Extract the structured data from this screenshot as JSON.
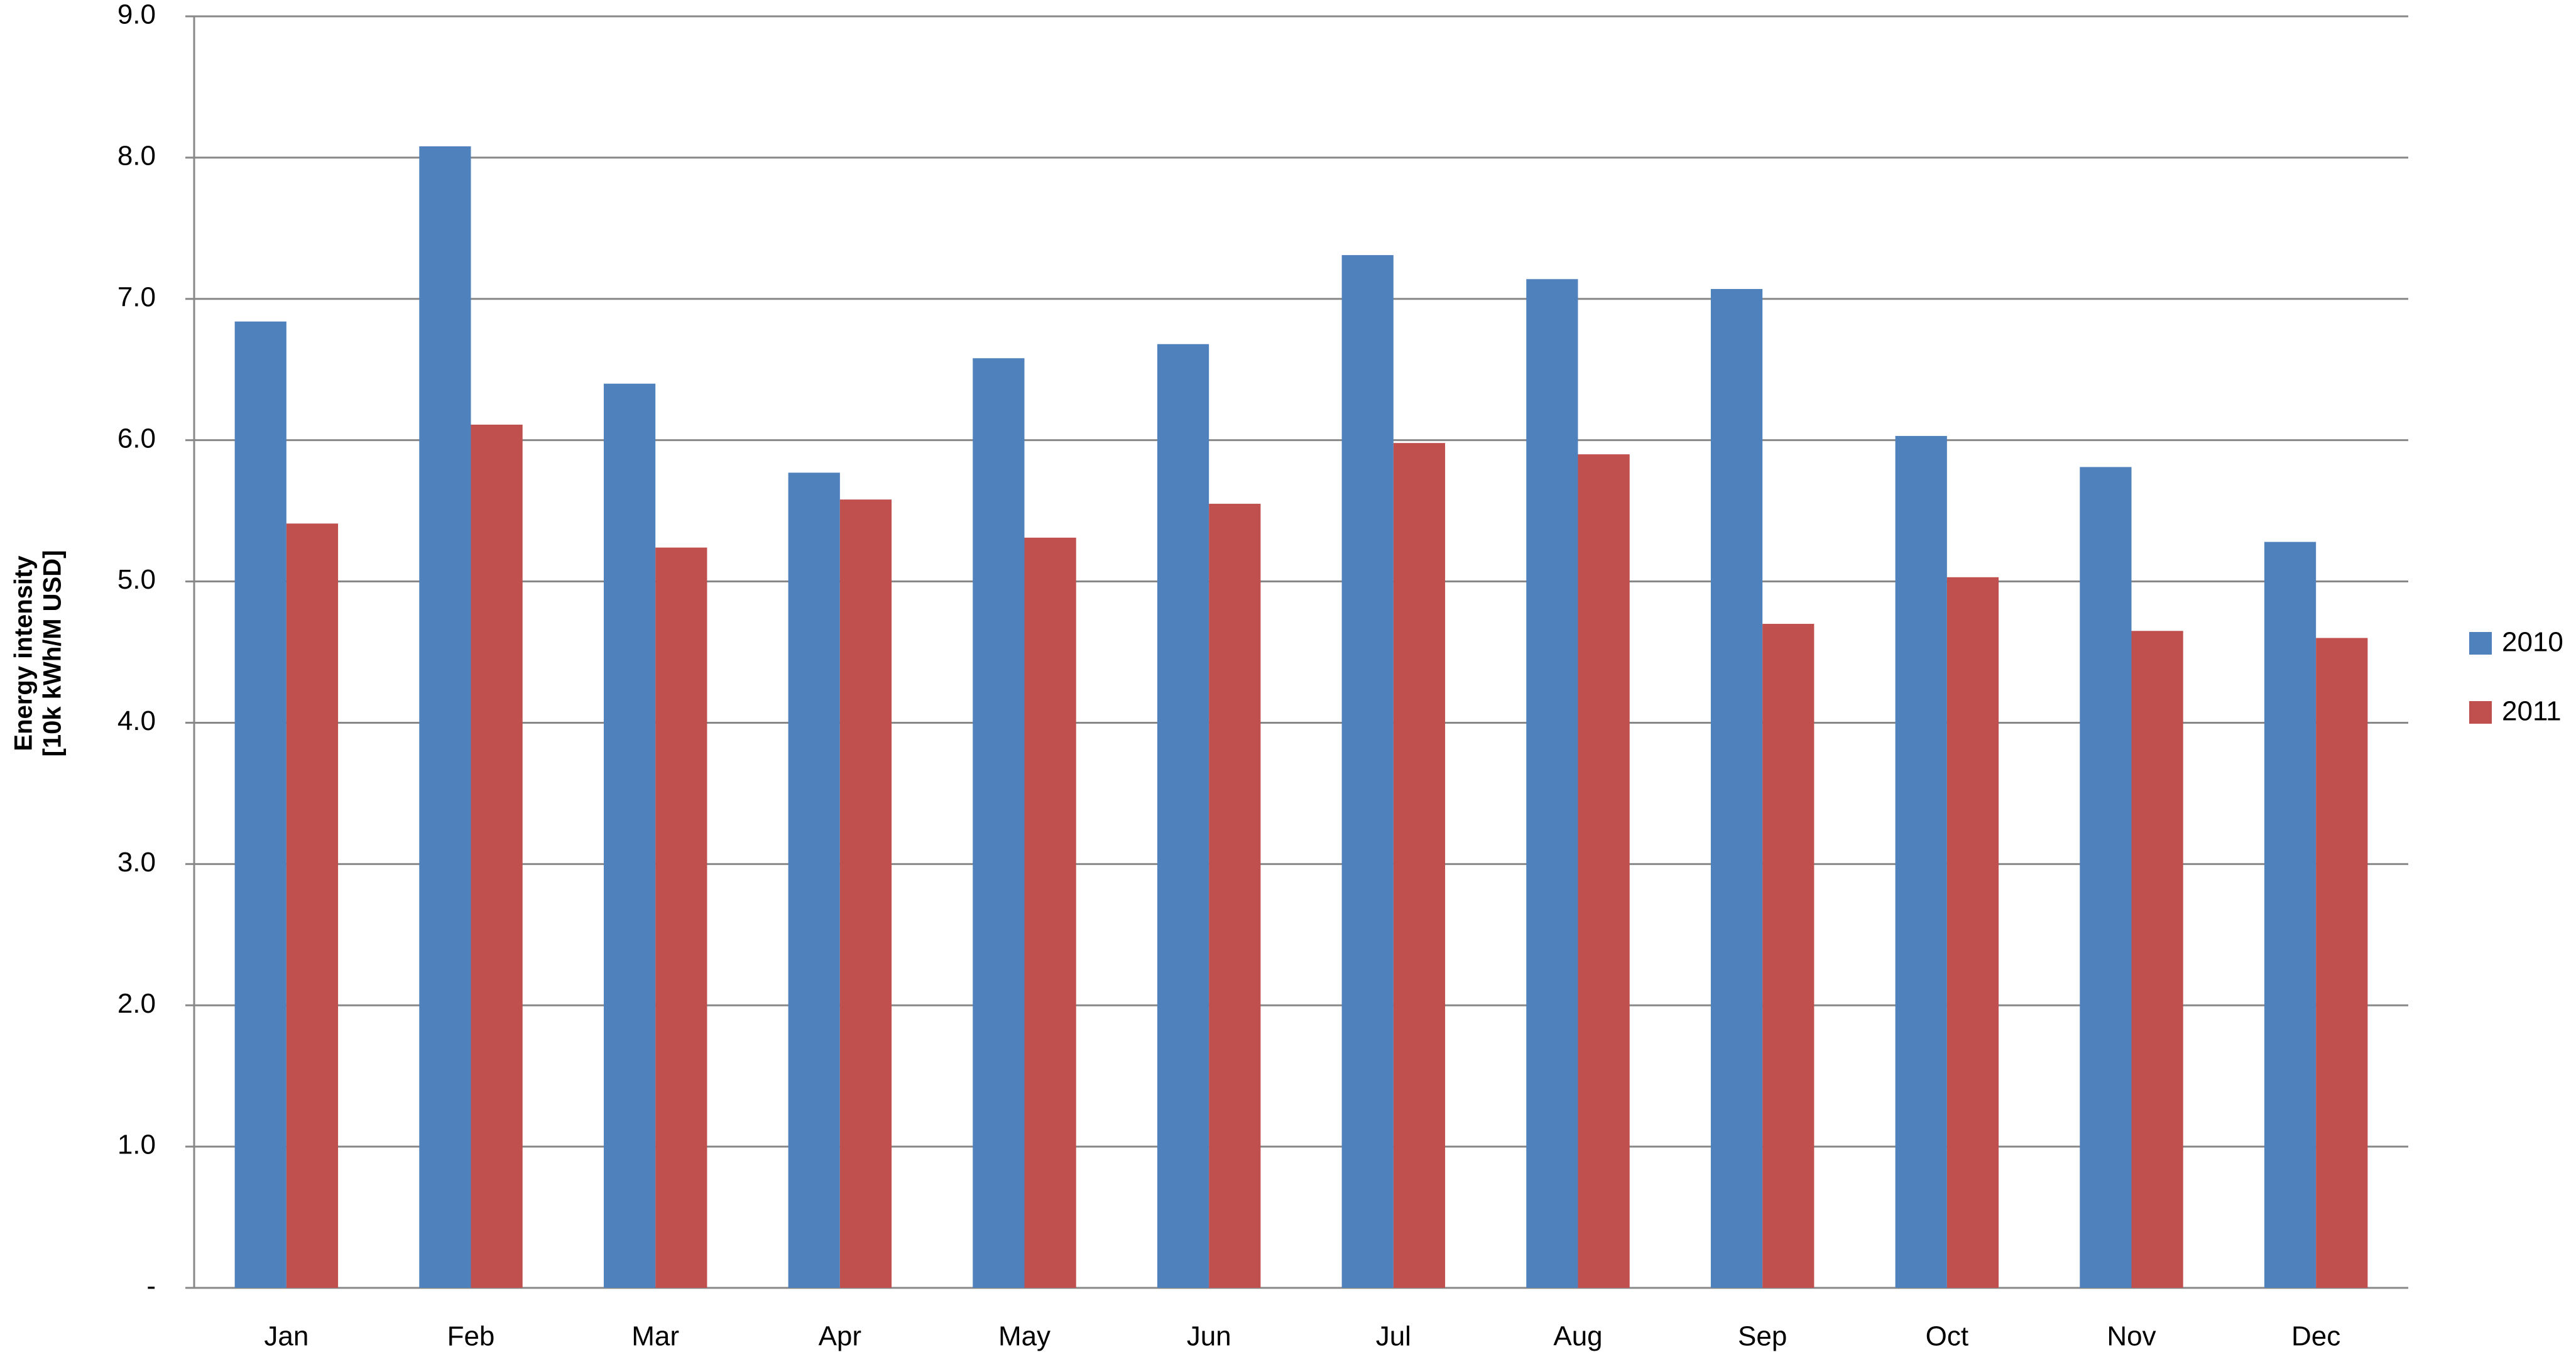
{
  "chart_data": {
    "type": "bar",
    "ylabel": [
      "Energy intensity",
      "[10k kWh/M USD]"
    ],
    "categories": [
      "Jan",
      "Feb",
      "Mar",
      "Apr",
      "May",
      "Jun",
      "Jul",
      "Aug",
      "Sep",
      "Oct",
      "Nov",
      "Dec"
    ],
    "series": [
      {
        "name": "2010",
        "color": "#4f81bd",
        "values": [
          6.84,
          8.08,
          6.4,
          5.77,
          6.58,
          6.68,
          7.31,
          7.14,
          7.07,
          6.03,
          5.81,
          5.28
        ]
      },
      {
        "name": "2011",
        "color": "#c0504d",
        "values": [
          5.41,
          6.11,
          5.24,
          5.58,
          5.31,
          5.55,
          5.98,
          5.9,
          4.7,
          5.03,
          4.65,
          4.6
        ]
      }
    ],
    "ylim": [
      0,
      9
    ],
    "yticks": [
      {
        "value": 0,
        "label": "-"
      },
      {
        "value": 1,
        "label": "1.0"
      },
      {
        "value": 2,
        "label": "2.0"
      },
      {
        "value": 3,
        "label": "3.0"
      },
      {
        "value": 4,
        "label": "4.0"
      },
      {
        "value": 5,
        "label": "5.0"
      },
      {
        "value": 6,
        "label": "6.0"
      },
      {
        "value": 7,
        "label": "7.0"
      },
      {
        "value": 8,
        "label": "8.0"
      },
      {
        "value": 9,
        "label": "9.0"
      }
    ],
    "grid": true
  }
}
